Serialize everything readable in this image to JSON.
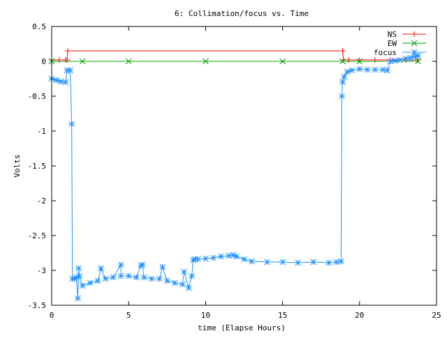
{
  "chart_data": {
    "type": "line",
    "title": "6: Collimation/focus vs. Time",
    "xlabel": "time (Elapse Hours)",
    "ylabel": "Volts",
    "xlim": [
      0,
      25
    ],
    "ylim": [
      -3.5,
      0.5
    ],
    "xticks": [
      {
        "value": 0,
        "label": "0"
      },
      {
        "value": 5,
        "label": "5"
      },
      {
        "value": 10,
        "label": "10"
      },
      {
        "value": 15,
        "label": "15"
      },
      {
        "value": 20,
        "label": "20"
      },
      {
        "value": 25,
        "label": "25"
      }
    ],
    "yticks": [
      {
        "value": 0.5,
        "label": "0.5"
      },
      {
        "value": 0,
        "label": "0"
      },
      {
        "value": -0.5,
        "label": "-0.5"
      },
      {
        "value": -1,
        "label": "-1"
      },
      {
        "value": -1.5,
        "label": "-1.5"
      },
      {
        "value": -2,
        "label": "-2"
      },
      {
        "value": -2.5,
        "label": "-2.5"
      },
      {
        "value": -3,
        "label": "-3"
      },
      {
        "value": -3.5,
        "label": "-3.5"
      }
    ],
    "grid": false,
    "legend_position": "top-right",
    "series": [
      {
        "name": "NS",
        "color": "#ff0000",
        "marker": "plus",
        "x": [
          0.0,
          0.5,
          0.9,
          1.0,
          1.05,
          18.9,
          18.95,
          19.3,
          20.0,
          21.0,
          22.0,
          23.0,
          23.8
        ],
        "y": [
          0.02,
          0.02,
          0.02,
          0.02,
          0.15,
          0.15,
          0.02,
          0.02,
          0.02,
          0.02,
          0.02,
          0.02,
          0.02
        ]
      },
      {
        "name": "EW",
        "color": "#00a000",
        "marker": "cross",
        "x": [
          0.0,
          2.0,
          5.0,
          10.0,
          15.0,
          18.9,
          20.0,
          23.8
        ],
        "y": [
          0.0,
          0.0,
          0.0,
          0.0,
          0.0,
          0.0,
          0.0,
          0.0
        ]
      },
      {
        "name": "focus",
        "color": "#1e90ff",
        "marker": "star",
        "x": [
          0.0,
          0.3,
          0.6,
          0.9,
          1.0,
          1.2,
          1.3,
          1.35,
          1.5,
          1.6,
          1.7,
          1.75,
          1.8,
          2.0,
          2.5,
          3.0,
          3.2,
          3.5,
          4.0,
          4.5,
          4.5,
          5.0,
          5.5,
          5.8,
          5.9,
          6.0,
          6.5,
          7.0,
          7.2,
          7.5,
          8.0,
          8.5,
          8.6,
          8.9,
          9.1,
          9.2,
          9.3,
          9.5,
          10.0,
          10.5,
          11.0,
          11.5,
          11.8,
          12.0,
          12.5,
          13.0,
          14.0,
          15.0,
          16.0,
          17.0,
          18.0,
          18.5,
          18.8,
          18.85,
          18.9,
          19.0,
          19.2,
          19.5,
          20.0,
          20.5,
          21.0,
          21.5,
          21.8,
          22.0,
          22.3,
          22.6,
          23.0,
          23.3,
          23.6,
          23.8
        ],
        "y": [
          -0.25,
          -0.27,
          -0.29,
          -0.3,
          -0.13,
          -0.13,
          -0.9,
          -3.12,
          -3.12,
          -3.1,
          -3.4,
          -2.97,
          -3.08,
          -3.22,
          -3.18,
          -3.15,
          -2.97,
          -3.12,
          -3.1,
          -2.92,
          -3.08,
          -3.08,
          -3.1,
          -2.93,
          -2.92,
          -3.1,
          -3.12,
          -3.12,
          -2.95,
          -3.15,
          -3.18,
          -3.2,
          -3.02,
          -3.25,
          -3.08,
          -2.85,
          -2.84,
          -2.84,
          -2.83,
          -2.82,
          -2.8,
          -2.79,
          -2.78,
          -2.8,
          -2.84,
          -2.87,
          -2.88,
          -2.88,
          -2.89,
          -2.88,
          -2.89,
          -2.88,
          -2.87,
          -0.5,
          -0.3,
          -0.22,
          -0.15,
          -0.13,
          -0.11,
          -0.12,
          -0.12,
          -0.12,
          -0.13,
          -0.0,
          0.01,
          0.02,
          0.04,
          0.05,
          0.07,
          0.08
        ]
      }
    ]
  }
}
